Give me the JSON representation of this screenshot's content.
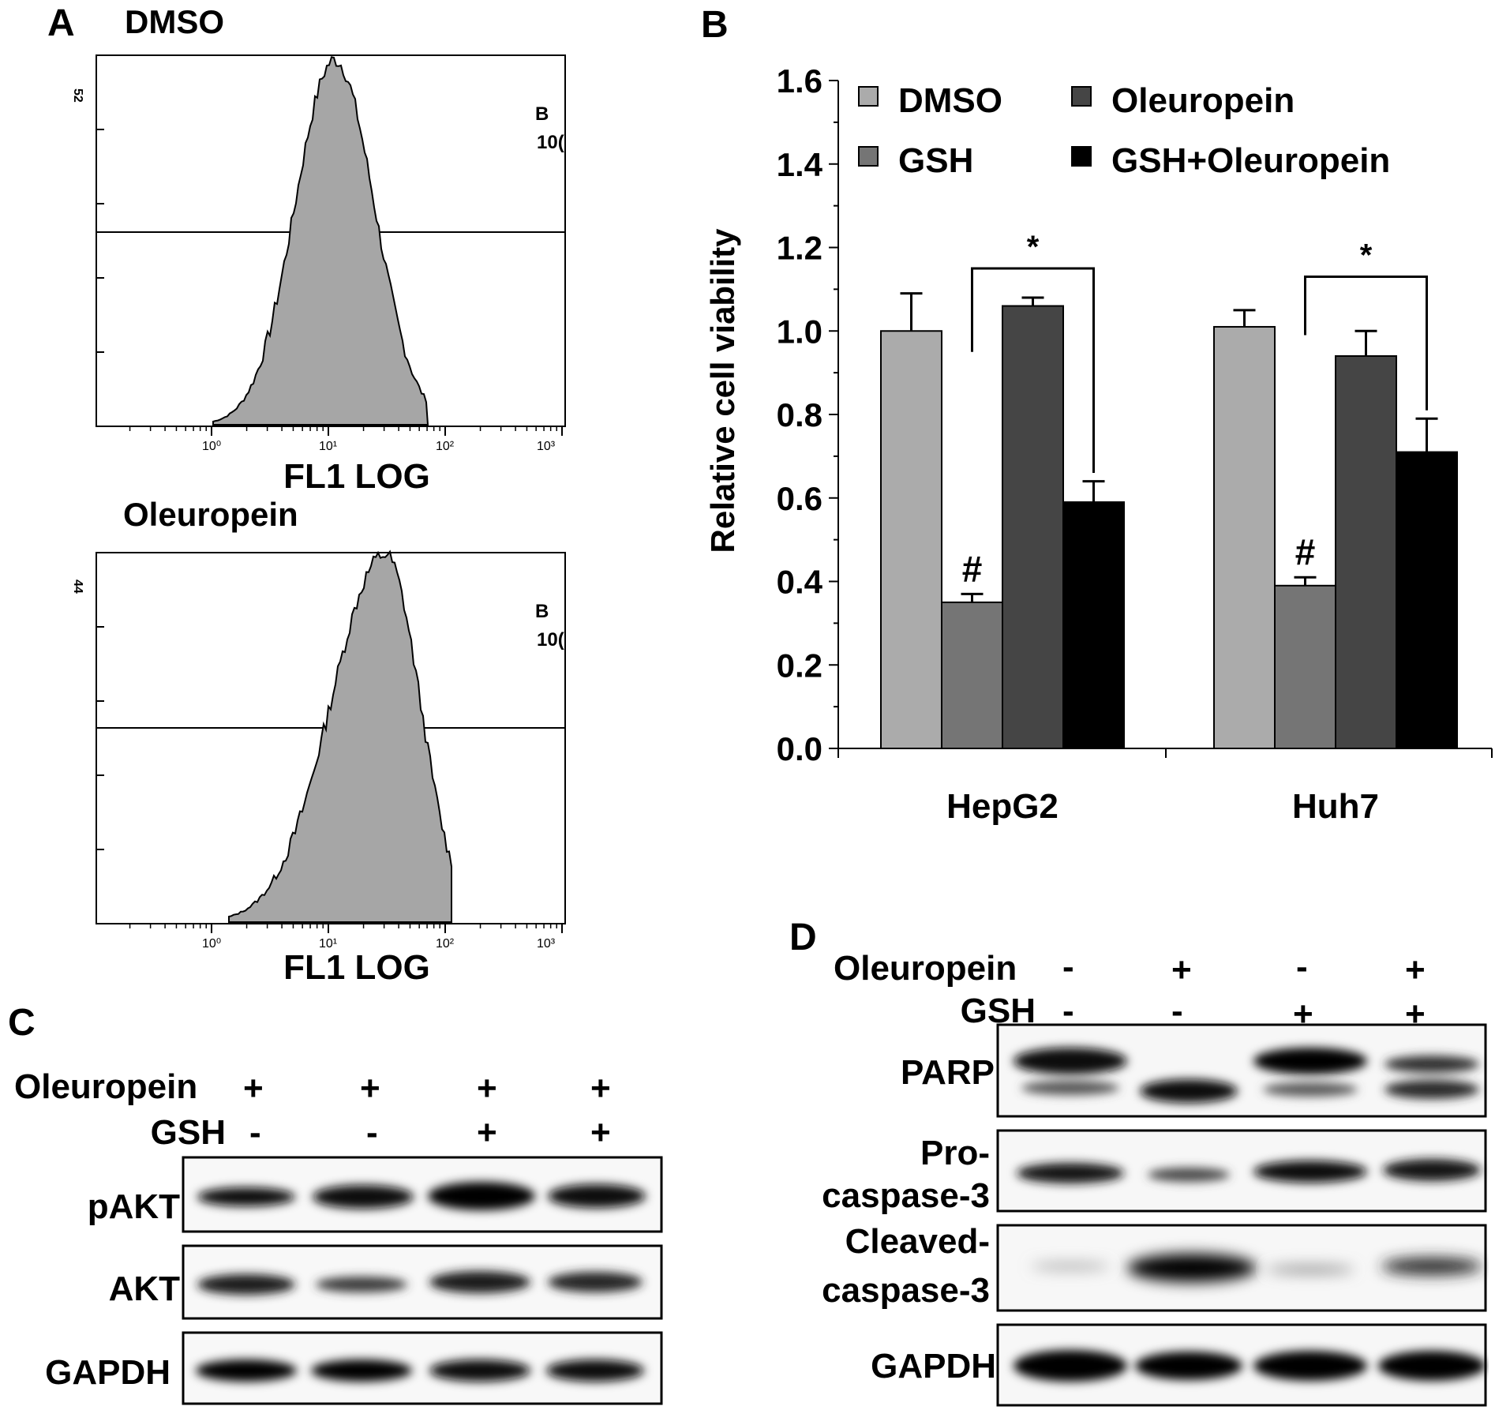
{
  "panels": {
    "A": {
      "label": "A",
      "histograms": [
        {
          "title": "DMSO",
          "ymax_label": "52",
          "gate_label": "B",
          "gate_value": "10(",
          "xlabel": "FL1 LOG",
          "xticks": [
            "10⁰",
            "10¹",
            "10²",
            "10³"
          ]
        },
        {
          "title": "Oleuropein",
          "ymax_label": "44",
          "gate_label": "B",
          "gate_value": "10(",
          "xlabel": "FL1 LOG",
          "xticks": [
            "10⁰",
            "10¹",
            "10²",
            "10³"
          ]
        }
      ]
    },
    "B": {
      "label": "B"
    },
    "C": {
      "label": "C",
      "rows": [
        {
          "name": "Oleuropein",
          "signs": [
            "+",
            "+",
            "+",
            "+"
          ]
        },
        {
          "name": "GSH",
          "signs": [
            "-",
            "-",
            "+",
            "+"
          ]
        }
      ],
      "blots": [
        "pAKT",
        "AKT",
        "GAPDH"
      ]
    },
    "D": {
      "label": "D",
      "rows": [
        {
          "name": "Oleuropein",
          "signs": [
            "-",
            "+",
            "-",
            "+"
          ]
        },
        {
          "name": "GSH",
          "signs": [
            "-",
            "-",
            "+",
            "+"
          ]
        }
      ],
      "blots": [
        {
          "line1": "PARP",
          "line2": ""
        },
        {
          "line1": "Pro-",
          "line2": "caspase-3"
        },
        {
          "line1": "Cleaved-",
          "line2": "caspase-3"
        },
        {
          "line1": "GAPDH",
          "line2": ""
        }
      ]
    }
  },
  "chart_data": {
    "type": "bar",
    "categories": [
      "HepG2",
      "Huh7"
    ],
    "ylabel": "Relative cell viability",
    "ylim": [
      0,
      1.6
    ],
    "yticks": [
      "0.0",
      "0.2",
      "0.4",
      "0.6",
      "0.8",
      "1.0",
      "1.2",
      "1.4",
      "1.6"
    ],
    "legend_position": "top",
    "series": [
      {
        "name": "DMSO",
        "values": [
          1.0,
          1.01
        ],
        "errors": [
          0.09,
          0.04
        ],
        "color": "#ababab"
      },
      {
        "name": "GSH",
        "values": [
          0.35,
          0.39
        ],
        "errors": [
          0.02,
          0.02
        ],
        "color": "#757575"
      },
      {
        "name": "Oleuropein",
        "values": [
          1.06,
          0.94
        ],
        "errors": [
          0.02,
          0.06
        ],
        "color": "#454545"
      },
      {
        "name": "GSH+Oleuropein",
        "values": [
          0.59,
          0.71
        ],
        "errors": [
          0.05,
          0.08
        ],
        "color": "#000000"
      }
    ],
    "annotations": {
      "hash": "#",
      "star": "*"
    }
  }
}
